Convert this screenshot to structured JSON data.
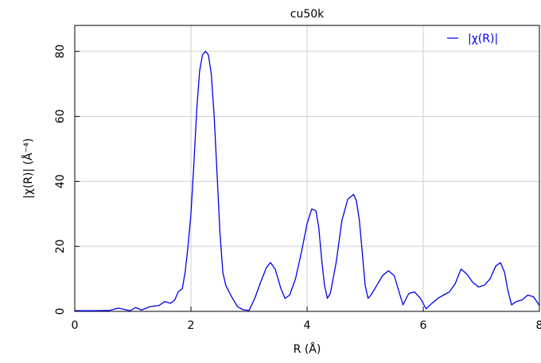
{
  "chart_data": {
    "type": "line",
    "title": "cu50k",
    "xlabel": "R (Å)",
    "ylabel": "|χ(R)| (Å⁻⁴)",
    "xlim": [
      0,
      8
    ],
    "ylim": [
      0,
      88
    ],
    "xticks": [
      0,
      2,
      4,
      6,
      8
    ],
    "yticks": [
      0,
      20,
      40,
      60,
      80
    ],
    "grid": true,
    "legend_position": "top-right",
    "series": [
      {
        "name": "|χ(R)|",
        "color": "#0000ee",
        "x": [
          0.0,
          0.3,
          0.6,
          0.75,
          0.85,
          0.95,
          1.05,
          1.15,
          1.3,
          1.45,
          1.55,
          1.65,
          1.72,
          1.78,
          1.85,
          1.9,
          1.95,
          2.0,
          2.05,
          2.1,
          2.15,
          2.2,
          2.25,
          2.3,
          2.35,
          2.4,
          2.45,
          2.5,
          2.55,
          2.6,
          2.7,
          2.8,
          2.9,
          3.0,
          3.1,
          3.2,
          3.3,
          3.37,
          3.45,
          3.55,
          3.62,
          3.7,
          3.8,
          3.9,
          4.0,
          4.08,
          4.15,
          4.2,
          4.25,
          4.3,
          4.35,
          4.4,
          4.5,
          4.6,
          4.7,
          4.8,
          4.85,
          4.9,
          4.95,
          5.0,
          5.05,
          5.1,
          5.2,
          5.3,
          5.4,
          5.5,
          5.6,
          5.65,
          5.75,
          5.85,
          5.95,
          6.05,
          6.15,
          6.25,
          6.35,
          6.45,
          6.55,
          6.65,
          6.75,
          6.85,
          6.95,
          7.05,
          7.15,
          7.25,
          7.33,
          7.4,
          7.45,
          7.52,
          7.6,
          7.7,
          7.8,
          7.9,
          8.0
        ],
        "y": [
          0.2,
          0.2,
          0.3,
          1.0,
          0.6,
          0.2,
          1.2,
          0.4,
          1.5,
          1.8,
          3.0,
          2.5,
          3.5,
          6.0,
          7.0,
          12.0,
          20.0,
          30.0,
          45.0,
          62.0,
          74.0,
          79.0,
          80.0,
          79.0,
          73.0,
          60.0,
          42.0,
          24.0,
          12.0,
          8.0,
          4.5,
          1.5,
          0.5,
          0.3,
          4.0,
          9.0,
          13.5,
          15.0,
          13.0,
          7.0,
          4.0,
          5.0,
          10.0,
          18.0,
          27.0,
          31.5,
          31.0,
          26.0,
          16.0,
          8.0,
          4.0,
          5.5,
          15.0,
          28.0,
          34.5,
          36.0,
          34.0,
          28.0,
          18.0,
          8.0,
          4.0,
          5.0,
          8.0,
          11.0,
          12.5,
          11.0,
          5.0,
          2.0,
          5.5,
          6.0,
          4.0,
          0.8,
          2.5,
          4.0,
          5.0,
          6.0,
          8.5,
          13.0,
          11.5,
          9.0,
          7.5,
          8.0,
          10.0,
          14.0,
          15.0,
          12.0,
          7.0,
          2.0,
          3.0,
          3.5,
          5.0,
          4.5,
          1.8
        ]
      }
    ]
  }
}
